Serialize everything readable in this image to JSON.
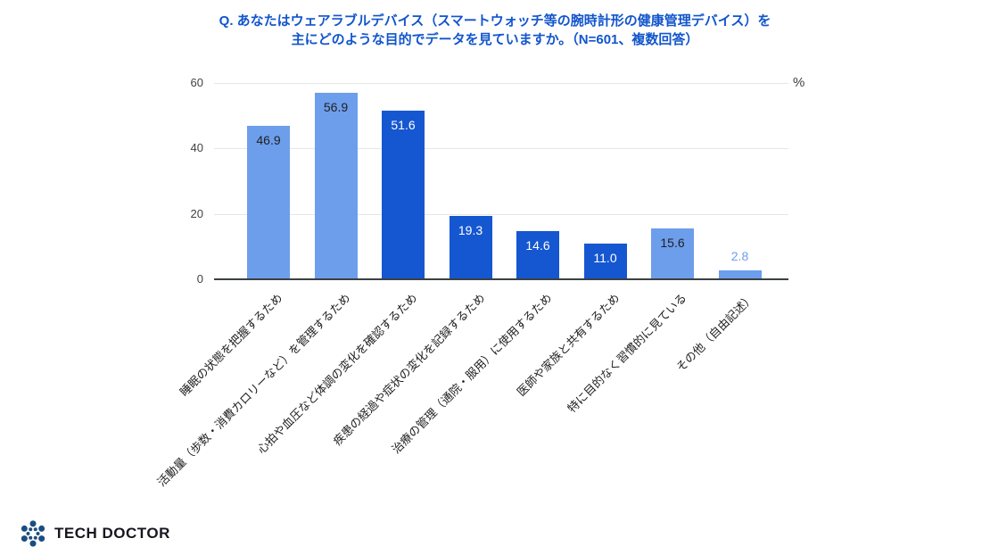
{
  "header": {
    "title_line1": "Q. あなたはウェアラブルデバイス（スマートウォッチ等の腕時計形の健康管理デバイス）を",
    "title_line2": "主にどのような目的でデータを見ていますか。（N=601、複数回答）"
  },
  "chart_data": {
    "type": "bar",
    "title": "Q. あなたはウェアラブルデバイス（スマートウォッチ等の腕時計形の健康管理デバイス）を主にどのような目的でデータを見ていますか。（N=601、複数回答）",
    "unit_label": "%",
    "categories": [
      "睡眠の状態を把握するため",
      "活動量（歩数・消費カロリーなど）を管理するため",
      "心拍や血圧など体調の変化を確認するため",
      "疾患の経過や症状の変化を記録するため",
      "治療の管理（通院・服用）に使用するため",
      "医師や家族と共有するため",
      "特に目的なく習慣的に見ている",
      "その他（自由記述）"
    ],
    "values": [
      46.9,
      56.9,
      51.6,
      19.3,
      14.6,
      11.0,
      15.6,
      2.8
    ],
    "value_labels": [
      "46.9",
      "56.9",
      "51.6",
      "19.3",
      "14.6",
      "11.0",
      "15.6",
      "2.8"
    ],
    "bar_colors": [
      "#6d9eeb",
      "#6d9eeb",
      "#1557d0",
      "#1557d0",
      "#1557d0",
      "#1557d0",
      "#6d9eeb",
      "#6d9eeb"
    ],
    "value_label_colors": [
      "#202124",
      "#202124",
      "#ffffff",
      "#ffffff",
      "#ffffff",
      "#ffffff",
      "#202124",
      "#6d9eeb"
    ],
    "value_label_placement": [
      "inside",
      "inside",
      "inside",
      "inside",
      "inside",
      "inside",
      "inside",
      "above"
    ],
    "xlabel": "",
    "ylabel": "",
    "ylim": [
      0,
      60
    ],
    "yticks": [
      0,
      20,
      40,
      60
    ],
    "grid": true,
    "legend": "none",
    "x_label_rotation_deg": 45
  },
  "colors": {
    "title": "#1155cc",
    "light_bar": "#6d9eeb",
    "dark_bar": "#1557d0",
    "gridline": "#e6e6e6",
    "axis_line": "#3c4043",
    "logo_icon": "#1b4e80",
    "logo_text": "#17171f"
  },
  "footer": {
    "logo_text": "TECH DOCTOR"
  }
}
